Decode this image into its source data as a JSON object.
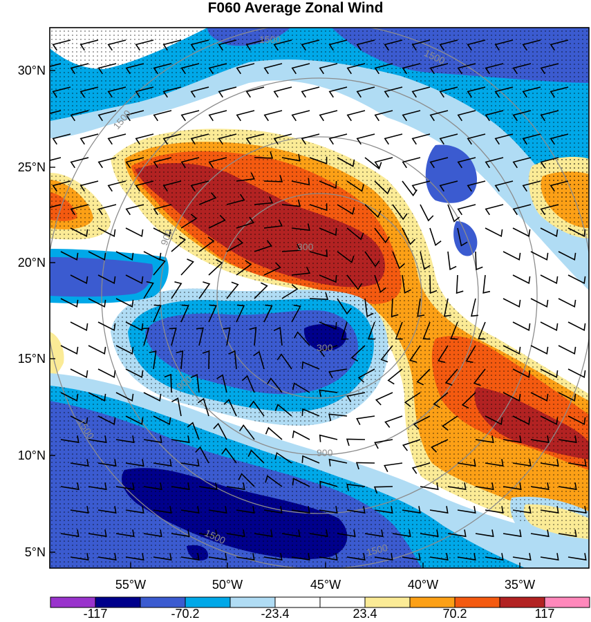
{
  "title": "F060 Average Zonal Wind",
  "map": {
    "lat_labels": [
      "30°N",
      "25°N",
      "20°N",
      "15°N",
      "10°N",
      "5°N"
    ],
    "lon_labels": [
      "55°W",
      "50°W",
      "45°W",
      "40°W",
      "35°W"
    ],
    "lat_range": [
      4.5,
      32.5
    ],
    "lon_range": [
      -59,
      -31
    ],
    "range_ring_labels": [
      "300",
      "300",
      "900",
      "900",
      "900",
      "1500",
      "1500",
      "1500",
      "1500",
      "1500",
      "1500"
    ],
    "overlays": [
      "filled zonal wind contours",
      "stippling",
      "wind barbs",
      "range rings"
    ]
  },
  "colorbar": {
    "labels": [
      "-117",
      "-70.2",
      "-23.4",
      "23.4",
      "70.2",
      "117"
    ],
    "colors": [
      "#9933cc",
      "#00008b",
      "#3b5bd0",
      "#00a8e8",
      "#b0dcf4",
      "#ffffff",
      "#ffffff",
      "#fbeb96",
      "#fca016",
      "#f45a10",
      "#b22222",
      "#ff88bb"
    ]
  }
}
